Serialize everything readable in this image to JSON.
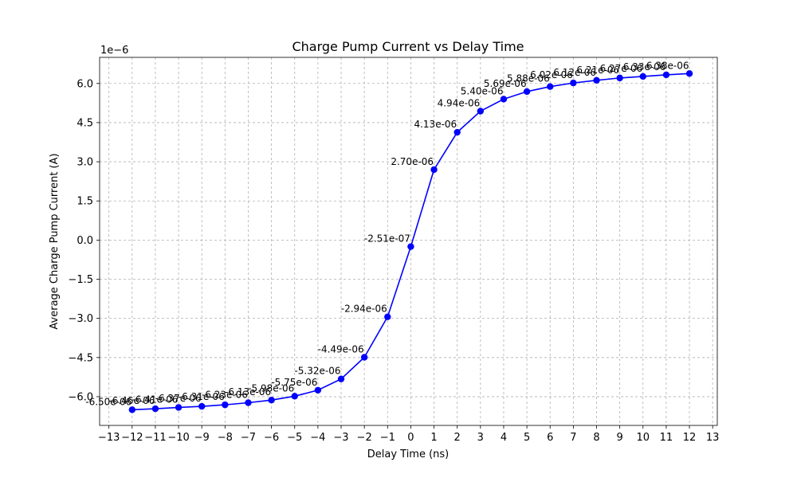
{
  "chart_data": {
    "type": "line",
    "title": "Charge Pump Current vs Delay Time",
    "xlabel": "Delay Time (ns)",
    "ylabel": "Average Charge Pump Current (A)",
    "y_offset_text": "1e−6",
    "xlim": [
      -13.4,
      13.2
    ],
    "ylim": [
      -7.1,
      7.0
    ],
    "y_scale_factor": 1e-06,
    "xticks": [
      -13,
      -12,
      -11,
      -10,
      -9,
      -8,
      -7,
      -6,
      -5,
      -4,
      -3,
      -2,
      -1,
      0,
      1,
      2,
      3,
      4,
      5,
      6,
      7,
      8,
      9,
      10,
      11,
      12,
      13
    ],
    "xtick_labels": [
      "−13",
      "−12",
      "−11",
      "−10",
      "−9",
      "−8",
      "−7",
      "−6",
      "−5",
      "−4",
      "−3",
      "−2",
      "−1",
      "0",
      "1",
      "2",
      "3",
      "4",
      "5",
      "6",
      "7",
      "8",
      "9",
      "10",
      "11",
      "12",
      "13"
    ],
    "yticks": [
      -6.0,
      -4.5,
      -3.0,
      -1.5,
      0.0,
      1.5,
      3.0,
      4.5,
      6.0
    ],
    "ytick_labels": [
      "−6.0",
      "−4.5",
      "−3.0",
      "−1.5",
      "0.0",
      "1.5",
      "3.0",
      "4.5",
      "6.0"
    ],
    "grid": true,
    "series": [
      {
        "color": "#0000ff",
        "marker": "circle",
        "x": [
          -12,
          -11,
          -10,
          -9,
          -8,
          -7,
          -6,
          -5,
          -4,
          -3,
          -2,
          -1,
          0,
          1,
          2,
          3,
          4,
          5,
          6,
          7,
          8,
          9,
          10,
          11,
          12
        ],
        "y": [
          -6.5,
          -6.46,
          -6.41,
          -6.37,
          -6.31,
          -6.23,
          -6.13,
          -5.98,
          -5.75,
          -5.32,
          -4.49,
          -2.94,
          -0.251,
          2.7,
          4.13,
          4.94,
          5.4,
          5.69,
          5.88,
          6.02,
          6.12,
          6.21,
          6.27,
          6.33,
          6.38
        ],
        "labels": [
          "-6.50e-06",
          "-6.46e-06",
          "-6.41e-06",
          "-6.37e-06",
          "-6.31e-06",
          "-6.23e-06",
          "-6.13e-06",
          "-5.98e-06",
          "-5.75e-06",
          "-5.32e-06",
          "-4.49e-06",
          "-2.94e-06",
          "-2.51e-07",
          "2.70e-06",
          "4.13e-06",
          "4.94e-06",
          "5.40e-06",
          "5.69e-06",
          "5.88e-06",
          "6.02e-06",
          "6.12e-06",
          "6.21e-06",
          "6.27e-06",
          "6.33e-06",
          "6.38e-06"
        ]
      }
    ]
  }
}
